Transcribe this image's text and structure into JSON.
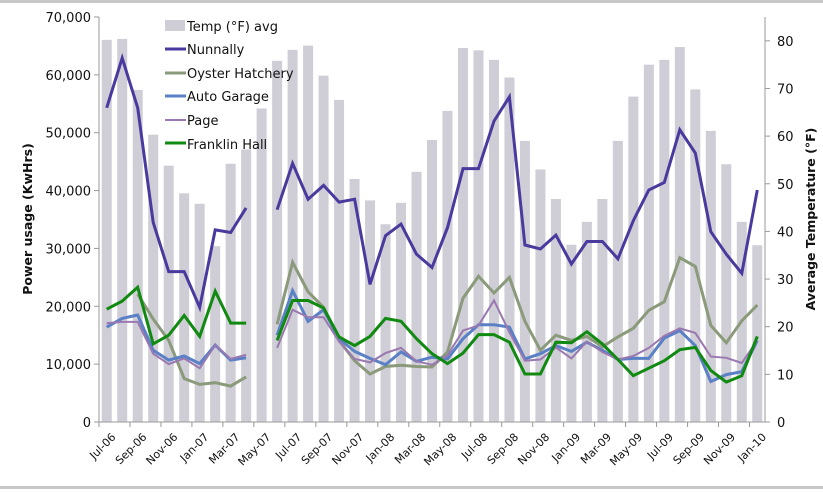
{
  "chart_data": {
    "type": "bar+line",
    "title": "",
    "ylabel": "Power usage (KwHrs)",
    "y2label": "Average Temperature (°F)",
    "ylim": [
      0,
      70000
    ],
    "y2lim": [
      0,
      85
    ],
    "yticks": [
      "0",
      "10,000",
      "20,000",
      "30,000",
      "40,000",
      "50,000",
      "60,000",
      "70,000"
    ],
    "y2ticks": [
      "0",
      "10",
      "20",
      "30",
      "40",
      "50",
      "60",
      "70",
      "80"
    ],
    "grid": false,
    "legend_position": "top-left-inside",
    "categories": [
      "Jul-06",
      "Aug-06",
      "Sep-06",
      "Oct-06",
      "Nov-06",
      "Dec-06",
      "Jan-07",
      "Feb-07",
      "Mar-07",
      "Apr-07",
      "May-07",
      "Jun-07",
      "Jul-07",
      "Aug-07",
      "Sep-07",
      "Oct-07",
      "Nov-07",
      "Dec-07",
      "Jan-08",
      "Feb-08",
      "Mar-08",
      "Apr-08",
      "May-08",
      "Jun-08",
      "Jul-08",
      "Aug-08",
      "Sep-08",
      "Oct-08",
      "Nov-08",
      "Dec-08",
      "Jan-09",
      "Feb-09",
      "Mar-09",
      "Apr-09",
      "May-09",
      "Jun-09",
      "Jul-09",
      "Aug-09",
      "Sep-09",
      "Oct-09",
      "Nov-09",
      "Dec-09",
      "Jan-10"
    ],
    "xtick_labels": [
      "Jul-06",
      "Sep-06",
      "Nov-06",
      "Jan-07",
      "Mar-07",
      "May-07",
      "Jul-07",
      "Sep-07",
      "Nov-07",
      "Jan-08",
      "Mar-08",
      "May-08",
      "Jul-08",
      "Sep-08",
      "Nov-08",
      "Jan-09",
      "Mar-09",
      "May-09",
      "Jul-09",
      "Sep-09",
      "Nov-09",
      "Jan-10"
    ],
    "bars": {
      "name": "Temp (°F) avg",
      "axis": "right",
      "color": "#cfcdd6",
      "values": [
        80.2,
        80.4,
        69.7,
        60.3,
        53.8,
        48.0,
        45.8,
        36.9,
        54.2,
        57.2,
        65.8,
        75.8,
        78.1,
        79.0,
        72.7,
        67.6,
        51.0,
        46.5,
        41.5,
        46.0,
        52.5,
        59.2,
        65.3,
        78.5,
        78.0,
        76.0,
        72.3,
        59.0,
        53.0,
        46.8,
        37.2,
        42.0,
        46.8,
        59.0,
        68.3,
        75.0,
        76.0,
        78.7,
        69.8,
        61.1,
        54.1,
        42.0,
        37.1
      ]
    },
    "series": [
      {
        "name": "Nunnally",
        "color": "#4a3a9e",
        "width": 3,
        "values": [
          54300,
          62900,
          54300,
          34500,
          26000,
          26000,
          19800,
          33200,
          32750,
          37000,
          null,
          36700,
          44700,
          38500,
          40900,
          38000,
          38500,
          23800,
          32200,
          34200,
          29000,
          26700,
          33600,
          43800,
          43800,
          52000,
          56200,
          30600,
          29900,
          32300,
          27300,
          31200,
          31200,
          28200,
          34800,
          40100,
          41400,
          50500,
          46500,
          32900,
          29000,
          25700,
          40100
        ]
      },
      {
        "name": "Oyster Hatchery",
        "color": "#8a9a7a",
        "width": 3,
        "values": [
          null,
          null,
          22100,
          17800,
          14100,
          7500,
          6500,
          6800,
          6200,
          7800,
          null,
          16900,
          27600,
          22500,
          19800,
          14100,
          10600,
          8300,
          9600,
          9800,
          9600,
          9500,
          12100,
          21400,
          25200,
          22300,
          25000,
          17400,
          12400,
          15000,
          14100,
          14800,
          13000,
          14700,
          16200,
          19300,
          20800,
          28400,
          26900,
          16700,
          13700,
          17500,
          20200
        ]
      },
      {
        "name": "Auto Garage",
        "color": "#5a80c6",
        "width": 3,
        "values": [
          16400,
          17900,
          18500,
          12400,
          10700,
          11400,
          10100,
          13300,
          10700,
          11100,
          null,
          15000,
          22700,
          17400,
          19400,
          14400,
          12200,
          11000,
          9900,
          12100,
          10500,
          11200,
          10900,
          14400,
          16800,
          16800,
          16400,
          10900,
          11800,
          13200,
          12200,
          13800,
          12400,
          10800,
          11000,
          11000,
          14500,
          15800,
          13200,
          7000,
          8200,
          8700,
          14100
        ]
      },
      {
        "name": "Page",
        "color": "#9a78b0",
        "width": 2,
        "values": [
          17100,
          17300,
          17300,
          11800,
          10000,
          11000,
          9300,
          13300,
          10900,
          11600,
          null,
          12800,
          19400,
          18100,
          18100,
          13900,
          10900,
          10300,
          11900,
          12800,
          10500,
          9900,
          11500,
          15800,
          16700,
          21000,
          15500,
          10600,
          10800,
          12900,
          11000,
          13900,
          12100,
          10800,
          11400,
          12800,
          14900,
          16200,
          15400,
          11300,
          11100,
          10200,
          14100
        ]
      },
      {
        "name": "Franklin Hall",
        "color": "#108a10",
        "width": 3,
        "values": [
          19500,
          20900,
          23300,
          13500,
          15000,
          18400,
          14800,
          22600,
          17100,
          17100,
          null,
          14100,
          21000,
          21000,
          19700,
          14700,
          13200,
          14800,
          17900,
          17400,
          14400,
          11800,
          10100,
          11900,
          15100,
          15100,
          13800,
          8300,
          8300,
          13800,
          13700,
          15600,
          13500,
          10800,
          8000,
          9300,
          10600,
          12500,
          12900,
          8900,
          6900,
          8000,
          14800
        ]
      }
    ]
  }
}
